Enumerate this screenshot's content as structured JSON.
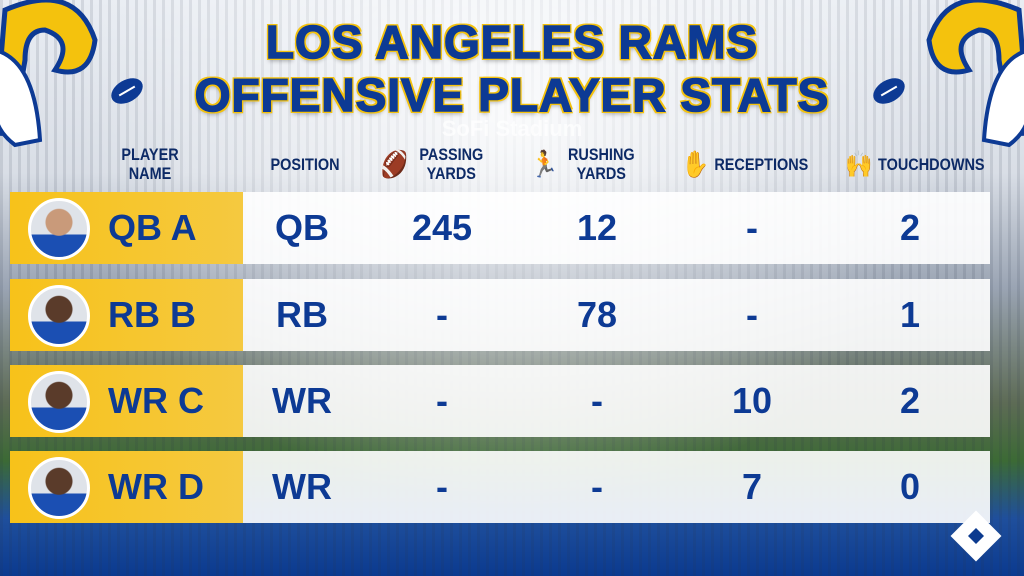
{
  "title": {
    "line1": "LOS ANGELES RAMS",
    "line2": "OFFENSIVE PLAYER STATS"
  },
  "background_sign": "SoFi Stadium",
  "colors": {
    "navy": "#0d3a94",
    "gold": "#f5c518"
  },
  "chart_data": {
    "type": "table",
    "columns": [
      {
        "label": "PLAYER NAME",
        "icon": ""
      },
      {
        "label": "POSITION",
        "icon": ""
      },
      {
        "label": "PASSING YARDS",
        "icon": "football-icon"
      },
      {
        "label": "RUSHING YARDS",
        "icon": "running-icon"
      },
      {
        "label": "RECEPTIONS",
        "icon": "gloves-icon"
      },
      {
        "label": "TOUCHDOWNS",
        "icon": "touchdown-icon"
      }
    ],
    "rows": [
      [
        "QB A",
        "QB",
        "245",
        "12",
        "-",
        "2"
      ],
      [
        "RB B",
        "RB",
        "-",
        "78",
        "-",
        "1"
      ],
      [
        "WR C",
        "WR",
        "-",
        "-",
        "10",
        "2"
      ],
      [
        "WR D",
        "WR",
        "-",
        "-",
        "7",
        "0"
      ]
    ]
  }
}
